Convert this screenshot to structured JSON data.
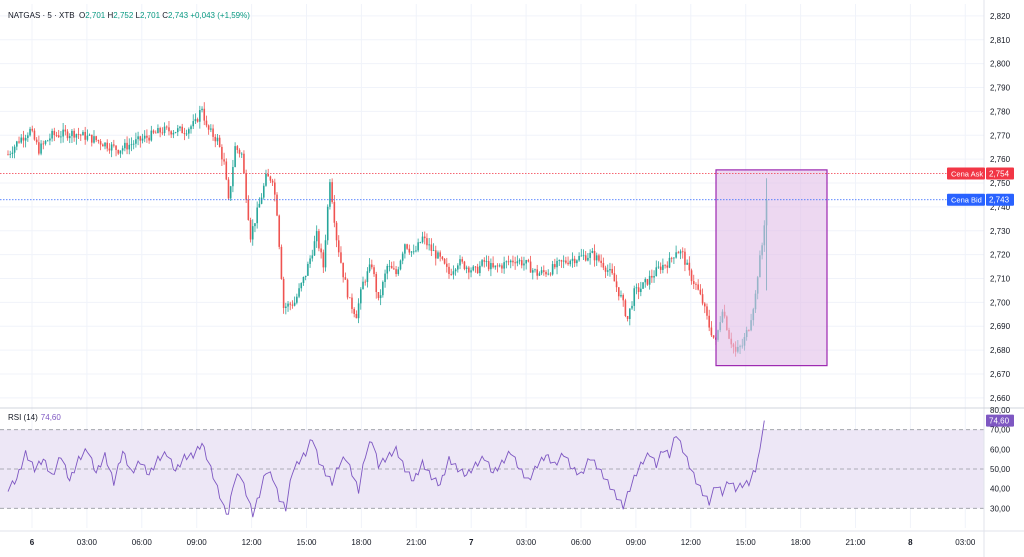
{
  "header": {
    "symbol": "NATGAS",
    "interval": "5",
    "exchange": "XTB",
    "open_label": "O",
    "open": "2,701",
    "high_label": "H",
    "high": "2,752",
    "low_label": "L",
    "low": "2,701",
    "close_label": "C",
    "close": "2,743",
    "change": "+0,043 (+1,59%)"
  },
  "colors": {
    "up": "#26a69a",
    "down": "#ef5350",
    "ask": "#f23645",
    "bid": "#2962ff",
    "rsi": "#7e57c2",
    "rsi_band": "#ede7f6",
    "box_fill": "#e1bee7",
    "box_stroke": "#9c27b0"
  },
  "price_axis": {
    "ticks": [
      "2,820",
      "2,810",
      "2,800",
      "2,790",
      "2,780",
      "2,770",
      "2,760",
      "2,750",
      "2,740",
      "2,730",
      "2,720",
      "2,710",
      "2,700",
      "2,690",
      "2,680",
      "2,670",
      "2,660"
    ],
    "ask_label": "Cena Ask",
    "ask_value": "2,754",
    "bid_label": "Cena Bid",
    "bid_value": "2,743"
  },
  "rsi": {
    "label": "RSI (14)",
    "value": "74,60",
    "ticks": [
      "80,00",
      "70,00",
      "60,00",
      "50,00",
      "40,00",
      "30,00"
    ],
    "upper": 70,
    "middle": 50,
    "lower": 30
  },
  "time_axis": {
    "labels": [
      "6",
      "03:00",
      "06:00",
      "09:00",
      "12:00",
      "15:00",
      "18:00",
      "21:00",
      "7",
      "03:00",
      "06:00",
      "09:00",
      "12:00",
      "15:00",
      "18:00",
      "21:00",
      "8",
      "03:00"
    ],
    "bold": [
      "6",
      "7",
      "8"
    ]
  },
  "chart_data": {
    "type": "candlestick",
    "ylim": [
      2.657,
      2.825
    ],
    "rsi_ylim": [
      20,
      80
    ],
    "price_anchors": [
      [
        0,
        2.762
      ],
      [
        5,
        2.768
      ],
      [
        10,
        2.772
      ],
      [
        14,
        2.764
      ],
      [
        20,
        2.77
      ],
      [
        30,
        2.771
      ],
      [
        40,
        2.768
      ],
      [
        50,
        2.764
      ],
      [
        60,
        2.768
      ],
      [
        70,
        2.772
      ],
      [
        80,
        2.772
      ],
      [
        85,
        2.775
      ],
      [
        88,
        2.782
      ],
      [
        90,
        2.773
      ],
      [
        95,
        2.768
      ],
      [
        98,
        2.758
      ],
      [
        100,
        2.742
      ],
      [
        103,
        2.765
      ],
      [
        106,
        2.762
      ],
      [
        110,
        2.728
      ],
      [
        114,
        2.741
      ],
      [
        117,
        2.752
      ],
      [
        120,
        2.752
      ],
      [
        122,
        2.738
      ],
      [
        125,
        2.698
      ],
      [
        130,
        2.7
      ],
      [
        135,
        2.712
      ],
      [
        140,
        2.728
      ],
      [
        143,
        2.715
      ],
      [
        146,
        2.752
      ],
      [
        149,
        2.727
      ],
      [
        152,
        2.712
      ],
      [
        155,
        2.7
      ],
      [
        158,
        2.695
      ],
      [
        161,
        2.708
      ],
      [
        165,
        2.716
      ],
      [
        168,
        2.7
      ],
      [
        172,
        2.715
      ],
      [
        176,
        2.712
      ],
      [
        180,
        2.725
      ],
      [
        184,
        2.72
      ],
      [
        188,
        2.727
      ],
      [
        192,
        2.722
      ],
      [
        196,
        2.718
      ],
      [
        200,
        2.712
      ],
      [
        204,
        2.717
      ],
      [
        208,
        2.715
      ],
      [
        212,
        2.713
      ],
      [
        216,
        2.717
      ],
      [
        220,
        2.714
      ],
      [
        225,
        2.716
      ],
      [
        230,
        2.718
      ],
      [
        235,
        2.716
      ],
      [
        240,
        2.712
      ],
      [
        245,
        2.713
      ],
      [
        250,
        2.716
      ],
      [
        255,
        2.718
      ],
      [
        260,
        2.719
      ],
      [
        265,
        2.72
      ],
      [
        270,
        2.716
      ],
      [
        274,
        2.711
      ],
      [
        278,
        2.702
      ],
      [
        281,
        2.693
      ],
      [
        284,
        2.704
      ],
      [
        287,
        2.706
      ],
      [
        290,
        2.709
      ],
      [
        293,
        2.712
      ],
      [
        296,
        2.715
      ],
      [
        300,
        2.717
      ],
      [
        303,
        2.722
      ],
      [
        306,
        2.72
      ],
      [
        309,
        2.712
      ],
      [
        312,
        2.707
      ],
      [
        315,
        2.7
      ],
      [
        318,
        2.69
      ],
      [
        321,
        2.683
      ],
      [
        324,
        2.698
      ],
      [
        327,
        2.686
      ],
      [
        330,
        2.679
      ],
      [
        333,
        2.682
      ],
      [
        336,
        2.69
      ],
      [
        339,
        2.703
      ],
      [
        340,
        2.712
      ],
      [
        342,
        2.724
      ],
      [
        344,
        2.743
      ]
    ],
    "rsi_anchors": [
      [
        0,
        40
      ],
      [
        4,
        45
      ],
      [
        8,
        58
      ],
      [
        12,
        50
      ],
      [
        16,
        55
      ],
      [
        20,
        46
      ],
      [
        24,
        57
      ],
      [
        28,
        44
      ],
      [
        32,
        55
      ],
      [
        36,
        60
      ],
      [
        40,
        48
      ],
      [
        44,
        57
      ],
      [
        48,
        43
      ],
      [
        52,
        59
      ],
      [
        56,
        48
      ],
      [
        60,
        54
      ],
      [
        64,
        47
      ],
      [
        68,
        55
      ],
      [
        72,
        58
      ],
      [
        76,
        49
      ],
      [
        80,
        56
      ],
      [
        84,
        57
      ],
      [
        88,
        63
      ],
      [
        92,
        50
      ],
      [
        95,
        40
      ],
      [
        98,
        30
      ],
      [
        100,
        27
      ],
      [
        102,
        42
      ],
      [
        105,
        48
      ],
      [
        108,
        38
      ],
      [
        111,
        27
      ],
      [
        114,
        37
      ],
      [
        117,
        49
      ],
      [
        120,
        46
      ],
      [
        123,
        35
      ],
      [
        126,
        30
      ],
      [
        129,
        49
      ],
      [
        132,
        54
      ],
      [
        135,
        58
      ],
      [
        138,
        66
      ],
      [
        141,
        54
      ],
      [
        144,
        48
      ],
      [
        147,
        43
      ],
      [
        150,
        52
      ],
      [
        153,
        56
      ],
      [
        156,
        48
      ],
      [
        159,
        39
      ],
      [
        162,
        57
      ],
      [
        165,
        65
      ],
      [
        168,
        52
      ],
      [
        172,
        56
      ],
      [
        176,
        60
      ],
      [
        180,
        50
      ],
      [
        184,
        44
      ],
      [
        188,
        53
      ],
      [
        192,
        46
      ],
      [
        196,
        42
      ],
      [
        200,
        55
      ],
      [
        204,
        50
      ],
      [
        208,
        47
      ],
      [
        212,
        52
      ],
      [
        216,
        56
      ],
      [
        220,
        48
      ],
      [
        224,
        53
      ],
      [
        228,
        59
      ],
      [
        232,
        50
      ],
      [
        236,
        44
      ],
      [
        240,
        52
      ],
      [
        244,
        57
      ],
      [
        248,
        52
      ],
      [
        252,
        58
      ],
      [
        256,
        50
      ],
      [
        260,
        47
      ],
      [
        264,
        56
      ],
      [
        268,
        50
      ],
      [
        272,
        43
      ],
      [
        276,
        36
      ],
      [
        279,
        31
      ],
      [
        282,
        40
      ],
      [
        285,
        48
      ],
      [
        288,
        54
      ],
      [
        291,
        58
      ],
      [
        294,
        52
      ],
      [
        297,
        60
      ],
      [
        300,
        57
      ],
      [
        303,
        68
      ],
      [
        306,
        60
      ],
      [
        309,
        52
      ],
      [
        312,
        44
      ],
      [
        315,
        38
      ],
      [
        318,
        33
      ],
      [
        321,
        42
      ],
      [
        324,
        38
      ],
      [
        327,
        44
      ],
      [
        330,
        40
      ],
      [
        333,
        42
      ],
      [
        336,
        43
      ],
      [
        339,
        50
      ],
      [
        341,
        60
      ],
      [
        343,
        74.6
      ]
    ]
  }
}
